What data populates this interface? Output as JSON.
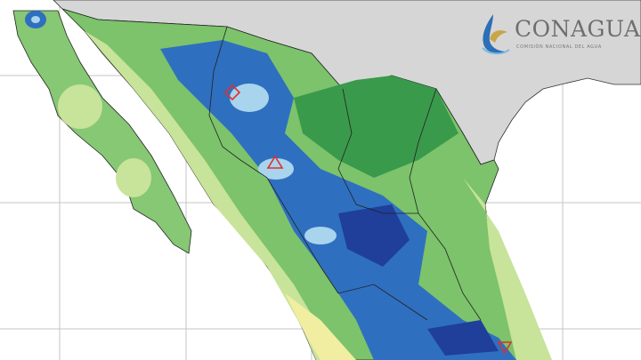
{
  "logo": {
    "title": "CONAGUA",
    "subtitle": "COMISIÓN NACIONAL DEL AGUA"
  },
  "colors": {
    "ocean": "#ffffff",
    "foreign_land": "#d4d4d4",
    "grid": "#bdbdbd",
    "light_green": "#c8e39a",
    "green": "#7cc36b",
    "dark_green": "#3a9a4b",
    "blue": "#2f6fc0",
    "dark_blue": "#1f3f9a",
    "light_blue": "#a9d4ee",
    "yellow": "#f1eea1",
    "orange": "#f3c479",
    "marker": "#e0302a"
  },
  "markers": [
    {
      "type": "diamond"
    },
    {
      "type": "triangle-up"
    },
    {
      "type": "triangle-down"
    }
  ]
}
